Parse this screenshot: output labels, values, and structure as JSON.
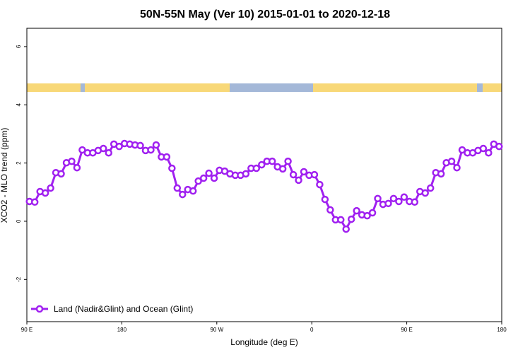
{
  "chart_data": {
    "type": "line",
    "title": "50N-55N May (Ver 10)   2015-01-01 to 2020-12-18",
    "x_label": "Longitude (deg E)",
    "y_label": "XCO2 - MLO trend (ppm)",
    "xlim": [
      90,
      540
    ],
    "xticks": [
      {
        "value": 90,
        "label": "90 E"
      },
      {
        "value": 180,
        "label": "180"
      },
      {
        "value": 270,
        "label": "90 W"
      },
      {
        "value": 360,
        "label": "0"
      },
      {
        "value": 450,
        "label": "90 E"
      },
      {
        "value": 540,
        "label": "180"
      }
    ],
    "ylim": [
      -3.45,
      6.63
    ],
    "yticks": [
      -2,
      0,
      2,
      4,
      6
    ],
    "legend_position": "bottom-left",
    "x": [
      92.5,
      97.5,
      102.5,
      107.5,
      112.5,
      117.5,
      122.5,
      127.5,
      132.5,
      137.5,
      142.5,
      147.5,
      152.5,
      157.5,
      162.5,
      167.5,
      172.5,
      177.5,
      182.5,
      187.5,
      192.5,
      197.5,
      202.5,
      207.5,
      212.5,
      217.5,
      222.5,
      227.5,
      232.5,
      237.5,
      242.5,
      247.5,
      252.5,
      257.5,
      262.5,
      267.5,
      272.5,
      277.5,
      282.5,
      287.5,
      292.5,
      297.5,
      302.5,
      307.5,
      312.5,
      317.5,
      322.5,
      327.5,
      332.5,
      337.5,
      342.5,
      347.5,
      352.5,
      357.5,
      362.5,
      367.5,
      372.5,
      377.5,
      382.5,
      387.5,
      392.5,
      397.5,
      402.5,
      407.5,
      412.5,
      417.5,
      422.5,
      427.5,
      432.5,
      437.5,
      442.5,
      447.5,
      452.5,
      457.5,
      462.5,
      467.5,
      472.5,
      477.5,
      482.5,
      487.5,
      492.5,
      497.5,
      502.5,
      507.5,
      512.5,
      517.5,
      522.5,
      527.5,
      532.5,
      537.5
    ],
    "series": [
      {
        "name": "Land (Nadir&Glint) and Ocean (Glint)",
        "color": "#a020f0",
        "values": [
          0.68,
          0.66,
          1.02,
          0.97,
          1.14,
          1.67,
          1.63,
          2.01,
          2.06,
          1.84,
          2.45,
          2.35,
          2.35,
          2.43,
          2.5,
          2.35,
          2.65,
          2.57,
          2.67,
          2.65,
          2.62,
          2.6,
          2.43,
          2.45,
          2.62,
          2.21,
          2.21,
          1.82,
          1.14,
          0.92,
          1.09,
          1.04,
          1.38,
          1.48,
          1.65,
          1.48,
          1.75,
          1.72,
          1.63,
          1.58,
          1.58,
          1.63,
          1.82,
          1.82,
          1.94,
          2.06,
          2.06,
          1.87,
          1.8,
          2.06,
          1.6,
          1.41,
          1.7,
          1.58,
          1.6,
          1.26,
          0.75,
          0.39,
          0.05,
          0.05,
          -0.27,
          0.07,
          0.36,
          0.22,
          0.19,
          0.29,
          0.78,
          0.58,
          0.61,
          0.78,
          0.68,
          0.83,
          0.68,
          0.66,
          1.02,
          0.97,
          1.14,
          1.67,
          1.63,
          2.01,
          2.06,
          1.84,
          2.45,
          2.35,
          2.35,
          2.43,
          2.5,
          2.35,
          2.65,
          2.57
        ]
      }
    ]
  }
}
